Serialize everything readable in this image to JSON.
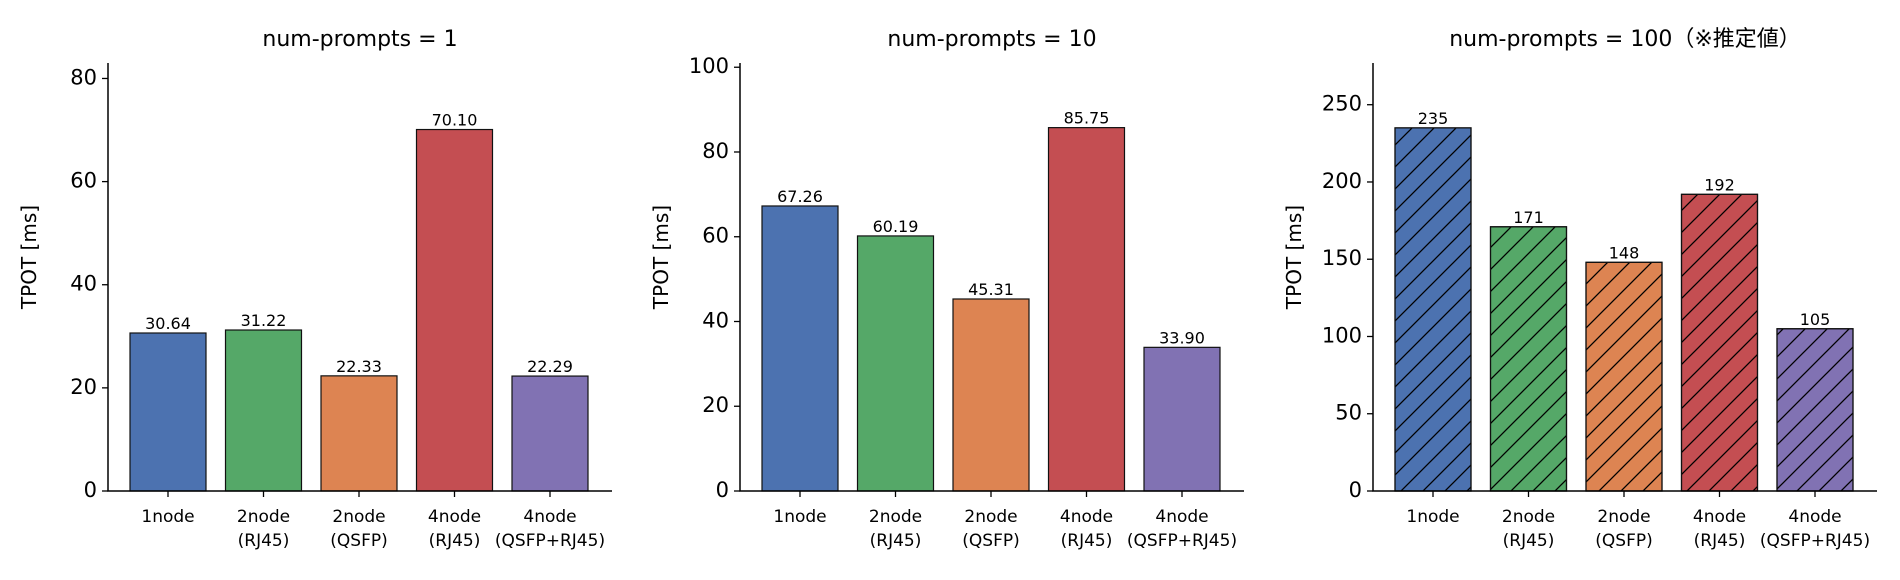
{
  "chart_data": [
    {
      "type": "bar",
      "title": "num-prompts = 1",
      "ylabel": "TPOT [ms]",
      "ylim": [
        0,
        83
      ],
      "yticks": [
        0,
        20,
        40,
        60,
        80
      ],
      "categories": [
        "1node",
        "2node\n(RJ45)",
        "2node\n(QSFP)",
        "4node\n(RJ45)",
        "4node\n(QSFP+RJ45)"
      ],
      "values": [
        30.64,
        31.22,
        22.33,
        70.1,
        22.29
      ],
      "data_labels": [
        "30.64",
        "31.22",
        "22.33",
        "70.10",
        "22.29"
      ],
      "colors": [
        "#4c72b0",
        "#55a868",
        "#dd8452",
        "#c44e52",
        "#8172b3"
      ],
      "hatched": false
    },
    {
      "type": "bar",
      "title": "num-prompts = 10",
      "ylabel": "TPOT [ms]",
      "ylim": [
        0,
        101
      ],
      "yticks": [
        0,
        20,
        40,
        60,
        80,
        100
      ],
      "categories": [
        "1node",
        "2node\n(RJ45)",
        "2node\n(QSFP)",
        "4node\n(RJ45)",
        "4node\n(QSFP+RJ45)"
      ],
      "values": [
        67.26,
        60.19,
        45.31,
        85.75,
        33.9
      ],
      "data_labels": [
        "67.26",
        "60.19",
        "45.31",
        "85.75",
        "33.90"
      ],
      "colors": [
        "#4c72b0",
        "#55a868",
        "#dd8452",
        "#c44e52",
        "#8172b3"
      ],
      "hatched": false
    },
    {
      "type": "bar",
      "title": "num-prompts = 100（※推定値）",
      "ylabel": "TPOT [ms]",
      "ylim": [
        0,
        277
      ],
      "yticks": [
        0,
        50,
        100,
        150,
        200,
        250
      ],
      "categories": [
        "1node",
        "2node\n(RJ45)",
        "2node\n(QSFP)",
        "4node\n(RJ45)",
        "4node\n(QSFP+RJ45)"
      ],
      "values": [
        235,
        171,
        148,
        192,
        105
      ],
      "data_labels": [
        "235",
        "171",
        "148",
        "192",
        "105"
      ],
      "colors": [
        "#4c72b0",
        "#55a868",
        "#dd8452",
        "#c44e52",
        "#8172b3"
      ],
      "hatched": true
    }
  ]
}
